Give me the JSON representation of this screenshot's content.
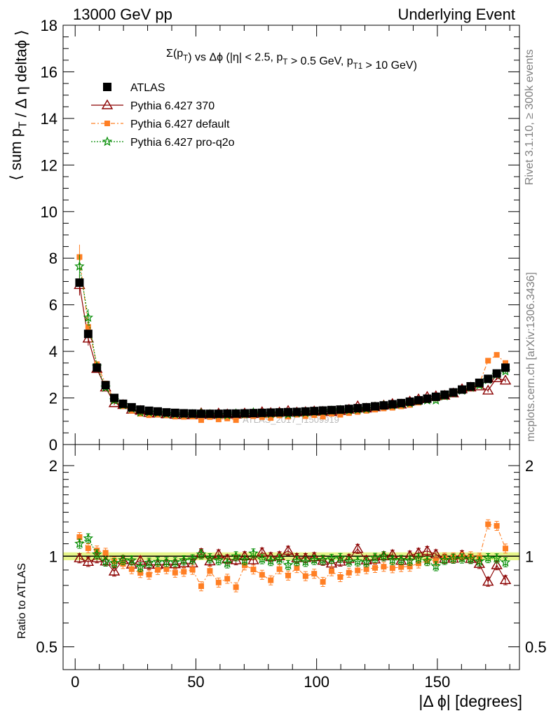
{
  "header": {
    "left": "13000 GeV pp",
    "right": "Underlying Event"
  },
  "side_labels": {
    "rivet": "Rivet 3.1.10, ≥ 300k events",
    "mcplots": "mcplots.cern.ch [arXiv:1306.3436]"
  },
  "watermark": "ATLAS_2017_I1509919",
  "chart_data": [
    {
      "type": "scatter",
      "panel": "main",
      "title": "Σ(p_T) vs Δϕ (|η| < 2.5, p_T > 0.5 GeV, p_T1 > 10 GeV)",
      "xlabel": "|Δ ϕ| [degrees]",
      "ylabel": "⟨ sum p_T / Δ η deltaϕ ⟩",
      "xlim": [
        -5,
        184
      ],
      "ylim": [
        0,
        18
      ],
      "y_ticks": [
        0,
        2,
        4,
        6,
        8,
        10,
        12,
        14,
        16,
        18
      ],
      "x": [
        1.8,
        5.4,
        9.0,
        12.6,
        16.2,
        19.8,
        23.4,
        27.0,
        30.6,
        34.2,
        37.8,
        41.4,
        45.0,
        48.6,
        52.2,
        55.8,
        59.4,
        63.0,
        66.6,
        70.2,
        73.8,
        77.4,
        81.0,
        84.6,
        88.2,
        91.8,
        95.4,
        99.0,
        102.6,
        106.2,
        109.8,
        113.4,
        117.0,
        120.6,
        124.2,
        127.8,
        131.4,
        135.0,
        138.6,
        142.2,
        145.8,
        149.4,
        153.0,
        156.6,
        160.2,
        163.8,
        167.4,
        171.0,
        174.6,
        178.2
      ],
      "series": [
        {
          "name": "ATLAS",
          "color": "#000000",
          "marker": "square",
          "values": [
            6.95,
            4.75,
            3.3,
            2.55,
            2.0,
            1.75,
            1.6,
            1.5,
            1.45,
            1.42,
            1.38,
            1.36,
            1.34,
            1.33,
            1.32,
            1.32,
            1.32,
            1.33,
            1.33,
            1.34,
            1.35,
            1.36,
            1.37,
            1.38,
            1.39,
            1.4,
            1.42,
            1.44,
            1.46,
            1.48,
            1.5,
            1.53,
            1.56,
            1.6,
            1.64,
            1.68,
            1.73,
            1.78,
            1.84,
            1.9,
            1.97,
            2.05,
            2.14,
            2.24,
            2.36,
            2.5,
            2.65,
            2.82,
            3.05,
            3.3
          ]
        },
        {
          "name": "Pythia 6.427 370",
          "color": "#8b0000",
          "marker": "triangle",
          "values": [
            6.85,
            4.55,
            3.25,
            2.45,
            1.78,
            1.7,
            1.5,
            1.45,
            1.36,
            1.33,
            1.3,
            1.28,
            1.27,
            1.26,
            1.35,
            1.27,
            1.34,
            1.3,
            1.29,
            1.34,
            1.31,
            1.4,
            1.36,
            1.38,
            1.45,
            1.38,
            1.4,
            1.43,
            1.41,
            1.4,
            1.44,
            1.5,
            1.65,
            1.55,
            1.6,
            1.68,
            1.75,
            1.72,
            1.85,
            1.95,
            2.05,
            2.08,
            2.1,
            2.2,
            2.38,
            2.45,
            2.5,
            2.32,
            2.85,
            2.75
          ]
        },
        {
          "name": "Pythia 6.427 default",
          "color": "#ff7f24",
          "marker": "square-small",
          "values": [
            8.05,
            5.05,
            3.45,
            2.62,
            1.92,
            1.65,
            1.45,
            1.32,
            1.26,
            1.28,
            1.25,
            1.2,
            1.19,
            1.2,
            1.05,
            1.18,
            1.08,
            1.12,
            1.05,
            1.25,
            1.22,
            1.18,
            1.14,
            1.25,
            1.2,
            1.28,
            1.22,
            1.26,
            1.2,
            1.32,
            1.28,
            1.35,
            1.4,
            1.45,
            1.5,
            1.55,
            1.58,
            1.64,
            1.7,
            1.8,
            1.9,
            1.98,
            2.12,
            2.22,
            2.35,
            2.5,
            2.62,
            3.6,
            3.85,
            3.5
          ]
        },
        {
          "name": "Pythia 6.427 pro-q2o",
          "color": "#008b00",
          "marker": "star",
          "values": [
            7.65,
            5.45,
            3.35,
            2.45,
            1.9,
            1.7,
            1.55,
            1.38,
            1.38,
            1.36,
            1.32,
            1.3,
            1.3,
            1.3,
            1.34,
            1.3,
            1.28,
            1.26,
            1.33,
            1.3,
            1.38,
            1.33,
            1.32,
            1.35,
            1.3,
            1.35,
            1.36,
            1.4,
            1.42,
            1.45,
            1.48,
            1.47,
            1.5,
            1.53,
            1.62,
            1.68,
            1.68,
            1.73,
            1.78,
            1.87,
            1.9,
            1.9,
            2.08,
            2.2,
            2.32,
            2.45,
            2.55,
            2.78,
            3.0,
            3.15
          ]
        }
      ],
      "legend_position": "top-left"
    },
    {
      "type": "scatter",
      "panel": "ratio",
      "xlabel": "|Δ ϕ| [degrees]",
      "ylabel": "Ratio to ATLAS",
      "xlim": [
        -5,
        184
      ],
      "ylim": [
        0.42,
        2.35
      ],
      "y_scale": "log",
      "y_ticks": [
        0.5,
        1,
        2
      ],
      "x_ticks": [
        0,
        50,
        100,
        150
      ],
      "band": {
        "lower": 0.97,
        "upper": 1.03,
        "color": "#e6f58a"
      },
      "series_ratio": [
        {
          "name": "Pythia 6.427 370",
          "values": [
            0.985,
            0.958,
            0.985,
            0.961,
            0.89,
            0.971,
            0.938,
            0.967,
            0.938,
            0.937,
            0.942,
            0.941,
            0.948,
            0.947,
            1.023,
            0.962,
            1.015,
            0.977,
            0.97,
            1.0,
            0.97,
            1.029,
            0.993,
            1.0,
            1.043,
            0.986,
            0.986,
            0.993,
            0.966,
            0.946,
            0.96,
            0.98,
            1.058,
            0.969,
            0.976,
            1.0,
            1.012,
            0.966,
            1.005,
            1.026,
            1.041,
            1.015,
            0.981,
            0.982,
            1.008,
            0.98,
            0.943,
            0.823,
            0.934,
            0.833
          ]
        },
        {
          "name": "Pythia 6.427 default",
          "values": [
            1.158,
            1.063,
            1.045,
            1.027,
            0.96,
            0.943,
            0.906,
            0.88,
            0.869,
            0.901,
            0.906,
            0.882,
            0.888,
            0.902,
            0.795,
            0.894,
            0.818,
            0.842,
            0.789,
            0.933,
            0.904,
            0.868,
            0.832,
            0.906,
            0.863,
            0.914,
            0.859,
            0.875,
            0.822,
            0.892,
            0.853,
            0.882,
            0.897,
            0.906,
            0.915,
            0.923,
            0.913,
            0.921,
            0.924,
            0.947,
            0.965,
            0.966,
            0.991,
            0.991,
            0.996,
            1.0,
            0.989,
            1.277,
            1.262,
            1.061
          ]
        },
        {
          "name": "Pythia 6.427 pro-q2o",
          "values": [
            1.101,
            1.147,
            1.015,
            0.961,
            0.95,
            0.971,
            0.969,
            0.92,
            0.952,
            0.958,
            0.957,
            0.956,
            0.97,
            0.977,
            1.015,
            0.985,
            0.97,
            0.947,
            1.0,
            0.97,
            1.022,
            0.978,
            0.964,
            0.978,
            0.935,
            0.964,
            0.958,
            0.972,
            0.973,
            0.98,
            0.987,
            0.961,
            0.962,
            0.956,
            0.988,
            1.0,
            0.971,
            0.972,
            0.967,
            0.984,
            0.964,
            0.927,
            0.972,
            0.982,
            0.983,
            0.98,
            0.962,
            0.986,
            0.984,
            0.955
          ]
        }
      ]
    }
  ]
}
